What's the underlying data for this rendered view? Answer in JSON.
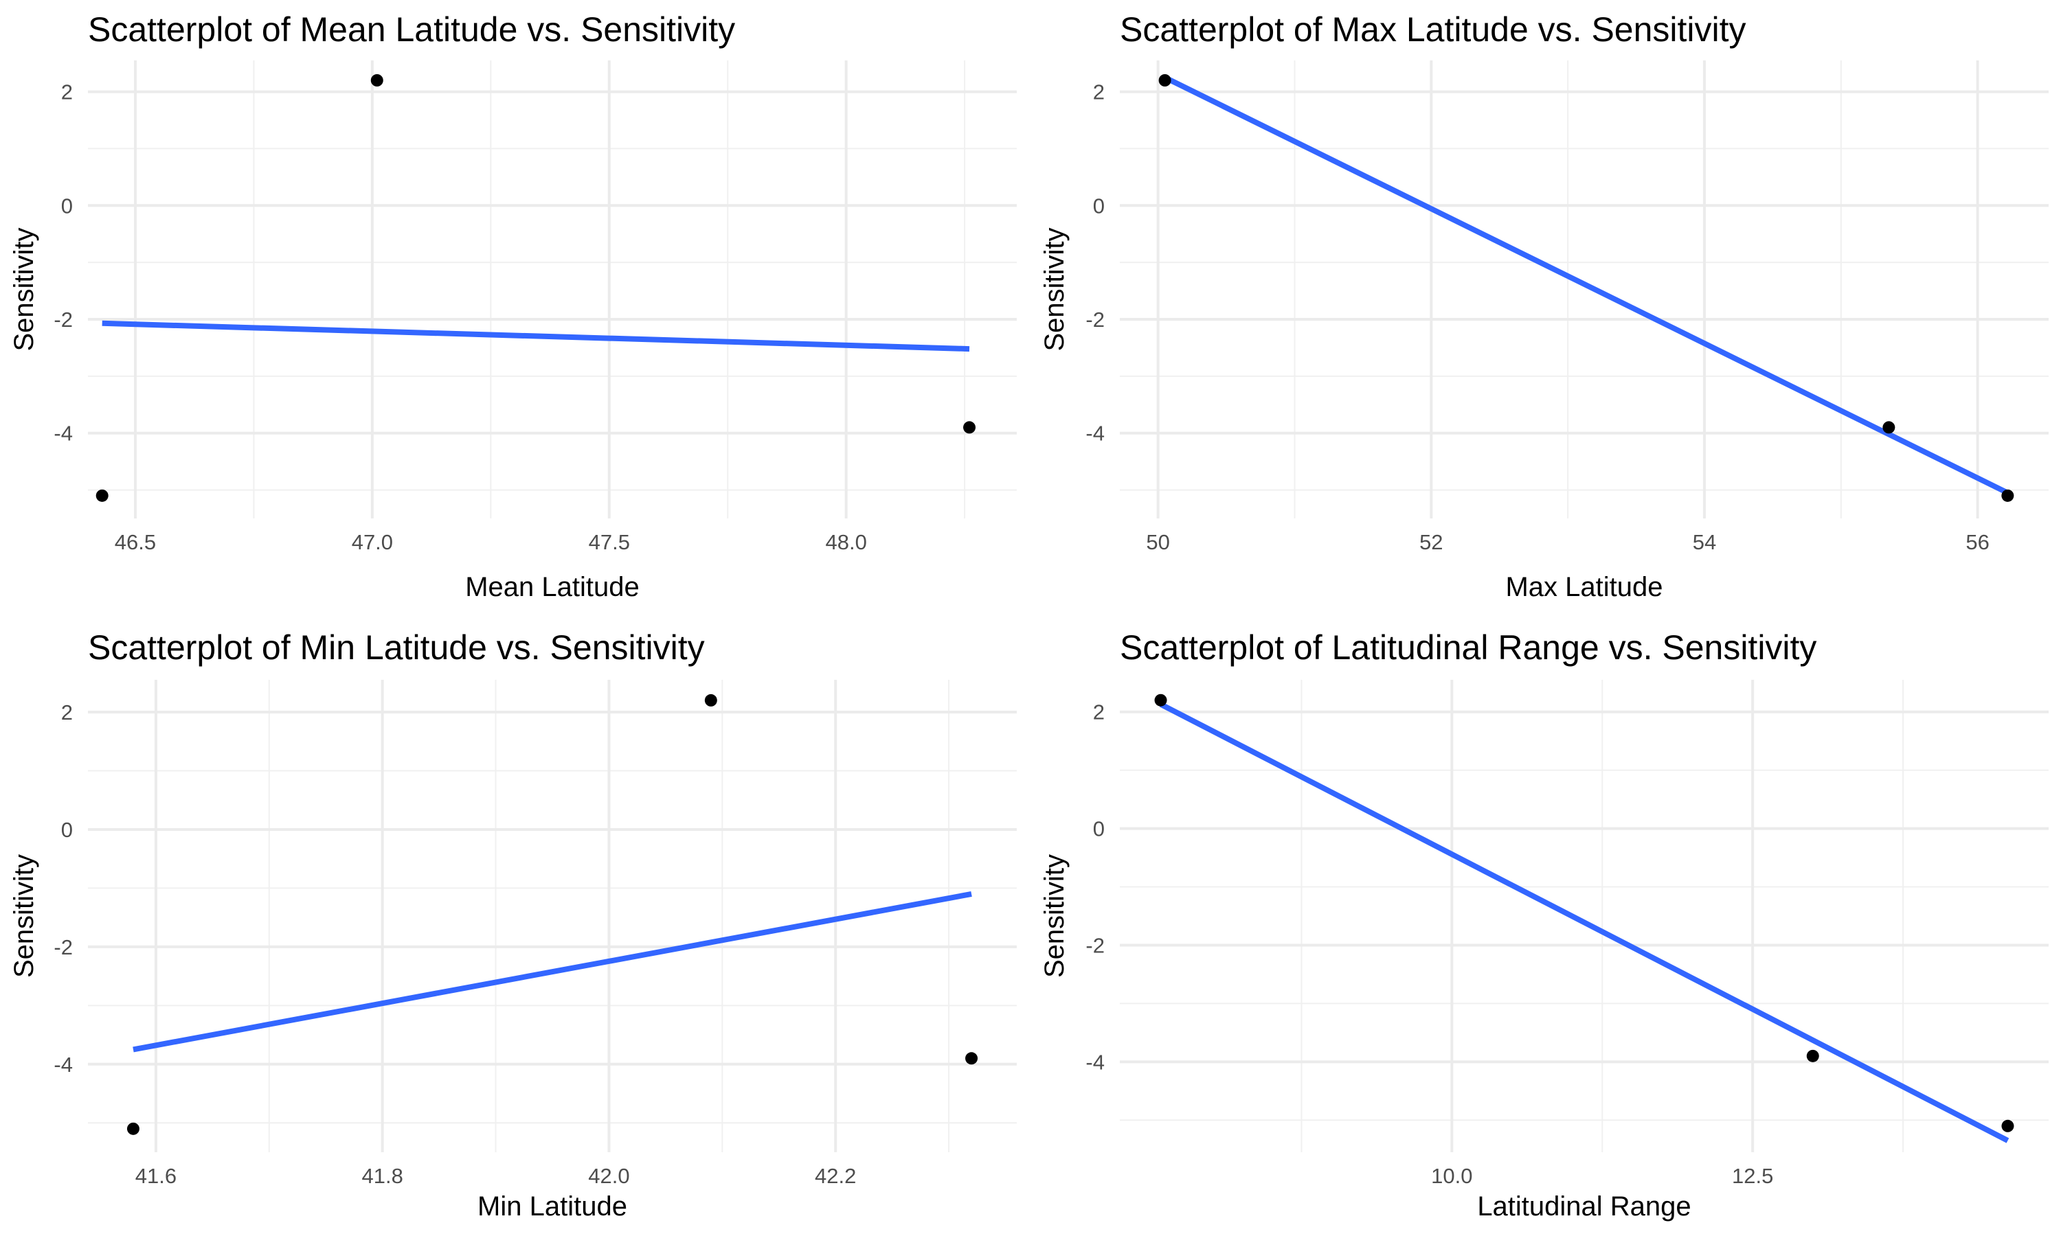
{
  "chart_data": [
    {
      "type": "scatter",
      "title": "Scatterplot of Mean Latitude vs. Sensitivity",
      "xlabel": "Mean Latitude",
      "ylabel": "Sensitivity",
      "xlim": [
        46.4,
        48.36
      ],
      "ylim": [
        -5.5,
        2.55
      ],
      "xticks": [
        "46.5",
        "47.0",
        "47.5",
        "48.0"
      ],
      "yticks": [
        "2",
        "0",
        "-2",
        "-4"
      ],
      "grid": true,
      "points": [
        {
          "x": 46.43,
          "y": -5.1
        },
        {
          "x": 47.01,
          "y": 2.2
        },
        {
          "x": 48.26,
          "y": -3.9
        }
      ],
      "trend": {
        "x": [
          46.43,
          48.26
        ],
        "y": [
          -2.07,
          -2.52
        ],
        "color": "#3366ff"
      }
    },
    {
      "type": "scatter",
      "title": "Scatterplot of Max Latitude vs. Sensitivity",
      "xlabel": "Max Latitude",
      "ylabel": "Sensitivity",
      "xlim": [
        49.72,
        56.52
      ],
      "ylim": [
        -5.5,
        2.55
      ],
      "xticks": [
        "50",
        "52",
        "54",
        "56"
      ],
      "yticks": [
        "2",
        "0",
        "-2",
        "-4"
      ],
      "grid": true,
      "points": [
        {
          "x": 50.05,
          "y": 2.2
        },
        {
          "x": 55.35,
          "y": -3.9
        },
        {
          "x": 56.22,
          "y": -5.1
        }
      ],
      "trend": {
        "x": [
          50.05,
          56.22
        ],
        "y": [
          2.25,
          -5.05
        ],
        "color": "#3366ff"
      }
    },
    {
      "type": "scatter",
      "title": "Scatterplot of Min Latitude vs. Sensitivity",
      "xlabel": "Min Latitude",
      "ylabel": "Sensitivity",
      "xlim": [
        41.54,
        42.36
      ],
      "ylim": [
        -5.5,
        2.55
      ],
      "xticks": [
        "41.6",
        "41.8",
        "42.0",
        "42.2"
      ],
      "yticks": [
        "2",
        "0",
        "-2",
        "-4"
      ],
      "grid": true,
      "points": [
        {
          "x": 41.58,
          "y": -5.1
        },
        {
          "x": 42.09,
          "y": 2.2
        },
        {
          "x": 42.32,
          "y": -3.9
        }
      ],
      "trend": {
        "x": [
          41.58,
          42.32
        ],
        "y": [
          -3.75,
          -1.1
        ],
        "color": "#3366ff"
      }
    },
    {
      "type": "scatter",
      "title": "Scatterplot of Latitudinal Range vs. Sensitivity",
      "xlabel": "Latitudinal Range",
      "ylabel": "Sensitivity",
      "xlim": [
        7.24,
        14.96
      ],
      "ylim": [
        -5.55,
        2.55
      ],
      "xticks": [
        "10.0",
        "12.5"
      ],
      "yticks": [
        "2",
        "0",
        "-2",
        "-4"
      ],
      "grid": true,
      "points": [
        {
          "x": 7.58,
          "y": 2.2
        },
        {
          "x": 13.0,
          "y": -3.9
        },
        {
          "x": 14.62,
          "y": -5.1
        }
      ],
      "trend": {
        "x": [
          7.58,
          14.62
        ],
        "y": [
          2.13,
          -5.35
        ],
        "color": "#3366ff"
      }
    }
  ]
}
